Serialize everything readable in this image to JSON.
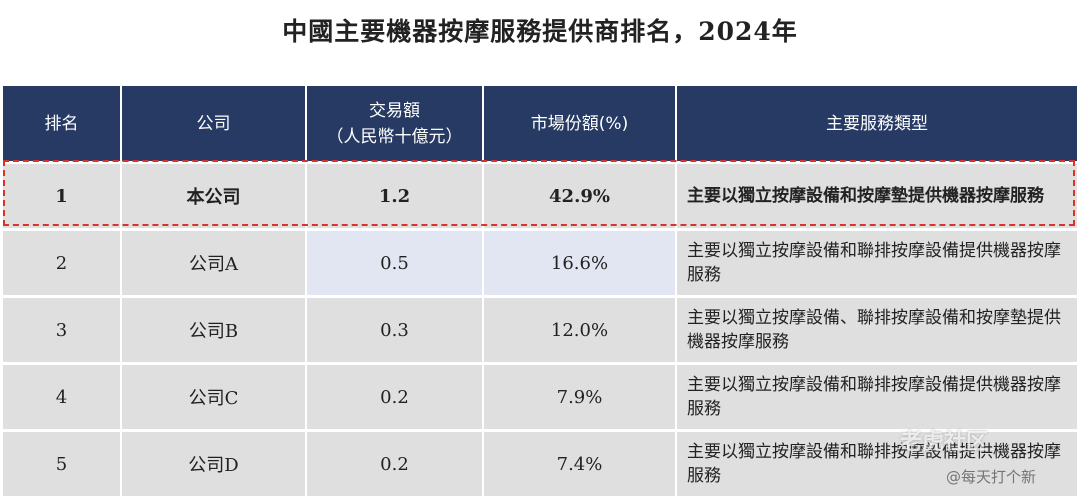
{
  "title": "中國主要機器按摩服務提供商排名，2024年",
  "headers": {
    "rank": "排名",
    "company": "公司",
    "volume_line1": "交易額",
    "volume_line2": "（人民幣十億元）",
    "share": "市場份額(%)",
    "service": "主要服務類型"
  },
  "rows": [
    {
      "rank": "1",
      "company": "本公司",
      "volume": "1.2",
      "share": "42.9%",
      "service": "主要以獨立按摩設備和按摩墊提供機器按摩服務"
    },
    {
      "rank": "2",
      "company": "公司A",
      "volume": "0.5",
      "share": "16.6%",
      "service": "主要以獨立按摩設備和聯排按摩設備提供機器按摩服務"
    },
    {
      "rank": "3",
      "company": "公司B",
      "volume": "0.3",
      "share": "12.0%",
      "service": "主要以獨立按摩設備、聯排按摩設備和按摩墊提供機器按摩服務"
    },
    {
      "rank": "4",
      "company": "公司C",
      "volume": "0.2",
      "share": "7.9%",
      "service": "主要以獨立按摩設備和聯排按摩設備提供機器按摩服務"
    },
    {
      "rank": "5",
      "company": "公司D",
      "volume": "0.2",
      "share": "7.4%",
      "service": "主要以獨立按摩設備和聯排按摩設備提供機器按摩服務"
    }
  ],
  "watermarks": {
    "site": "老虎社区",
    "author": "@每天打个新"
  },
  "colors": {
    "header_bg": "#263a63",
    "cell_bg": "#dfdfdf",
    "highlight_cell": "#e2e6f2",
    "dashed_border": "#d9342b"
  }
}
